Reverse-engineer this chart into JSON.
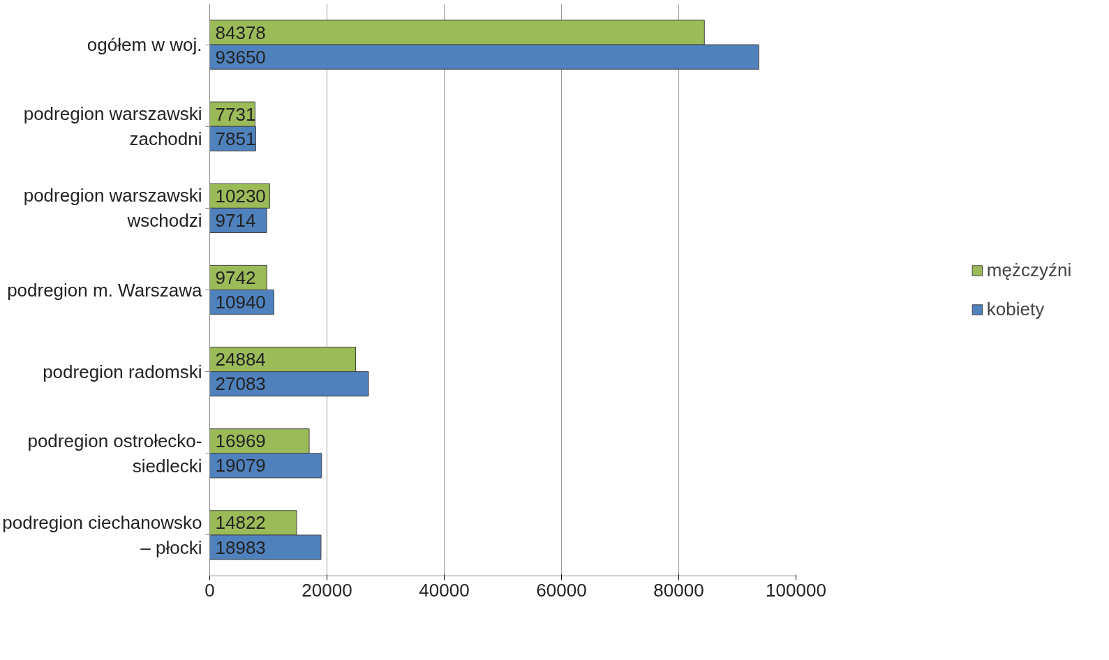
{
  "chart_data": {
    "type": "bar",
    "orientation": "horizontal",
    "categories": [
      "ogółem w woj.",
      "podregion warszawski zachodni",
      "podregion warszawski wschodzi",
      "podregion m. Warszawa",
      "podregion radomski",
      "podregion ostrołecko-siedlecki",
      "podregion ciechanowsko – płocki"
    ],
    "series": [
      {
        "name": "mężczyźni",
        "color": "#9bbb59",
        "values": [
          84378,
          7731,
          10230,
          9742,
          24884,
          16969,
          14822
        ]
      },
      {
        "name": "kobiety",
        "color": "#4f81bd",
        "values": [
          93650,
          7851,
          9714,
          10940,
          27083,
          19079,
          18983
        ]
      }
    ],
    "xlim": [
      0,
      100000
    ],
    "xticks": [
      0,
      20000,
      40000,
      60000,
      80000,
      100000
    ],
    "grid": "x",
    "legend": "right",
    "data_labels": true
  }
}
